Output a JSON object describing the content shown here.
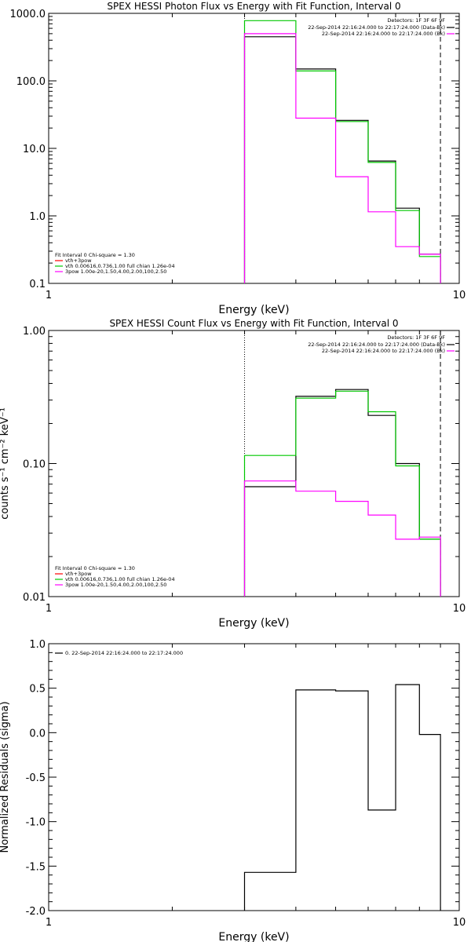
{
  "chart_data": [
    {
      "type": "line",
      "title": "SPEX HESSI Photon Flux vs Energy with Fit Function, Interval 0",
      "xlabel": "Energy (keV)",
      "ylabel": "",
      "xscale": "log",
      "yscale": "log",
      "xlim": [
        1,
        10
      ],
      "ylim": [
        0.1,
        1000
      ],
      "xticks": [
        {
          "v": 1,
          "label": "1"
        },
        {
          "v": 10,
          "label": "10"
        }
      ],
      "yticks": [
        {
          "v": 0.1,
          "label": "0.1"
        },
        {
          "v": 1,
          "label": "1.0"
        },
        {
          "v": 10,
          "label": "10.0"
        },
        {
          "v": 100,
          "label": "100.0"
        },
        {
          "v": 1000,
          "label": "1000.0"
        }
      ],
      "edges": [
        3,
        4,
        5,
        6,
        7,
        8,
        9
      ],
      "series": [
        {
          "name": "",
          "color": "#000000",
          "values": [
            450,
            150,
            26,
            6.5,
            1.3,
            0.27
          ]
        },
        {
          "name": "",
          "color": "#00c800",
          "values": [
            780,
            140,
            25,
            6.2,
            1.2,
            0.25
          ]
        },
        {
          "name": "",
          "color": "#ff00ff",
          "values": [
            500,
            28,
            3.8,
            1.15,
            0.35,
            0.27
          ]
        }
      ],
      "vlines": [
        {
          "x": 3,
          "style": "dotted",
          "color": "#000000"
        },
        {
          "x": 9,
          "style": "dashed",
          "color": "#000000"
        }
      ],
      "legend_right": {
        "header": "Detectors: 1F 3F 6F 9F",
        "rows": [
          {
            "label": "22-Sep-2014 22:16:24.000 to 22:17:24.000 (Data-Bk)",
            "color": "#000000"
          },
          {
            "label": "22-Sep-2014 22:16:24.000 to 22:17:24.000 (Bk)",
            "color": "#ff00ff"
          }
        ]
      },
      "legend_left": {
        "header": "Fit Interval 0   Chi-square = 1.30",
        "rows": [
          {
            "label": "vth+3pow",
            "color": "#ff0000"
          },
          {
            "label": "vth 0.00616,0.736,1.00  full chian 1.26e-04",
            "color": "#00c800"
          },
          {
            "label": "3pow 1.00e-20,1.50,4.00,2.00,100,2.50",
            "color": "#ff00ff"
          }
        ]
      }
    },
    {
      "type": "line",
      "title": "SPEX HESSI Count Flux vs Energy with Fit Function, Interval 0",
      "xlabel": "Energy (keV)",
      "ylabel": "counts s⁻¹ cm⁻² keV⁻¹",
      "xscale": "log",
      "yscale": "log",
      "xlim": [
        1,
        10
      ],
      "ylim": [
        0.01,
        1
      ],
      "xticks": [
        {
          "v": 1,
          "label": "1"
        },
        {
          "v": 10,
          "label": "10"
        }
      ],
      "yticks": [
        {
          "v": 0.01,
          "label": "0.01"
        },
        {
          "v": 0.1,
          "label": "0.10"
        },
        {
          "v": 1,
          "label": "1.00"
        }
      ],
      "edges": [
        3,
        4,
        5,
        6,
        7,
        8,
        9
      ],
      "series": [
        {
          "name": "",
          "color": "#000000",
          "values": [
            0.067,
            0.32,
            0.36,
            0.23,
            0.1,
            0.027
          ]
        },
        {
          "name": "",
          "color": "#00c800",
          "values": [
            0.115,
            0.31,
            0.35,
            0.245,
            0.096,
            0.027
          ]
        },
        {
          "name": "",
          "color": "#ff00ff",
          "values": [
            0.074,
            0.062,
            0.052,
            0.041,
            0.027,
            0.028
          ]
        }
      ],
      "vlines": [
        {
          "x": 3,
          "style": "dotted",
          "color": "#000000"
        },
        {
          "x": 9,
          "style": "dashed",
          "color": "#000000"
        }
      ],
      "legend_right": {
        "header": "Detectors: 1F 3F 6F 9F",
        "rows": [
          {
            "label": "22-Sep-2014 22:16:24.000 to 22:17:24.000 (Data-Bk)",
            "color": "#000000"
          },
          {
            "label": "22-Sep-2014 22:16:24.000 to 22:17:24.000 (Bk)",
            "color": "#ff00ff"
          }
        ]
      },
      "legend_left": {
        "header": "Fit Interval 0   Chi-square = 1.30",
        "rows": [
          {
            "label": "vth+3pow",
            "color": "#ff0000"
          },
          {
            "label": "vth 0.00616,0.736,1.00  full chian 1.26e-04",
            "color": "#00c800"
          },
          {
            "label": "3pow 1.00e-20,1.50,4.00,2.00,100,2.50",
            "color": "#ff00ff"
          }
        ]
      }
    },
    {
      "type": "line",
      "title": "",
      "xlabel": "Energy (keV)",
      "ylabel": "Normalized Residuals (sigma)",
      "xscale": "log",
      "yscale": "linear",
      "xlim": [
        1,
        10
      ],
      "ylim": [
        -2.0,
        1.0
      ],
      "xticks": [
        {
          "v": 1,
          "label": "1"
        },
        {
          "v": 10,
          "label": "10"
        }
      ],
      "yticks": [
        {
          "v": -2.0,
          "label": "-2.0"
        },
        {
          "v": -1.5,
          "label": "-1.5"
        },
        {
          "v": -1.0,
          "label": "-1.0"
        },
        {
          "v": -0.5,
          "label": "-0.5"
        },
        {
          "v": 0.0,
          "label": "0.0"
        },
        {
          "v": 0.5,
          "label": "0.5"
        },
        {
          "v": 1.0,
          "label": "1.0"
        }
      ],
      "edges": [
        3,
        4,
        5,
        6,
        7,
        8,
        9
      ],
      "series": [
        {
          "name": "0. 22-Sep-2014 22:16:24.000 to 22:17:24.000",
          "color": "#000000",
          "values": [
            -1.57,
            0.48,
            0.47,
            -0.87,
            0.54,
            -0.02
          ]
        }
      ],
      "vlines": [],
      "legend_left": {
        "header": "",
        "rows": [
          {
            "label": "0. 22-Sep-2014 22:16:24.000 to 22:17:24.000",
            "color": "#000000"
          }
        ]
      }
    }
  ]
}
